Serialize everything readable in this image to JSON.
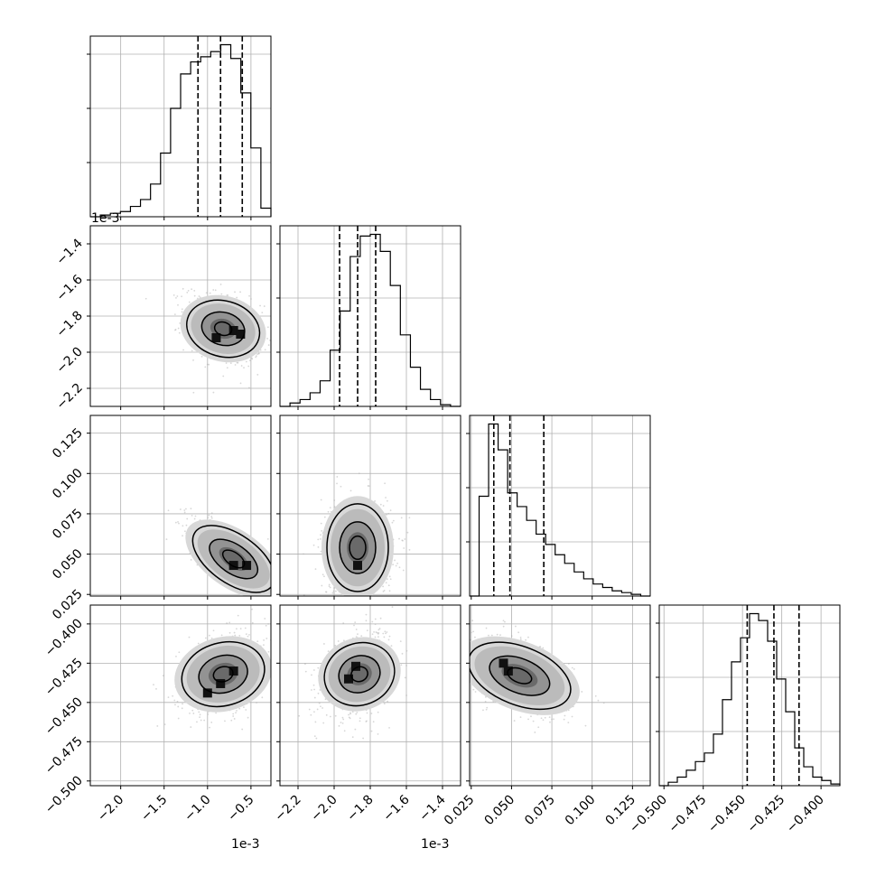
{
  "chart_data": {
    "type": "corner",
    "n_params": 4,
    "offset_labels": {
      "p0_x": "1e-3",
      "p0_y": "1e-3",
      "p1_x": "1e-3"
    },
    "params": [
      {
        "range": [
          -2.35,
          -0.27
        ],
        "ticks": [
          -2.0,
          -1.5,
          -1.0,
          -0.5
        ],
        "tick_labels": [
          "−2.0",
          "−1.5",
          "−1.0",
          "−0.5"
        ],
        "quantiles": [
          -1.11,
          -0.85,
          -0.6
        ],
        "hist": [
          0,
          0.01,
          0.02,
          0.03,
          0.06,
          0.1,
          0.19,
          0.37,
          0.63,
          0.83,
          0.9,
          0.93,
          0.96,
          1.0,
          0.92,
          0.72,
          0.4,
          0.05
        ]
      },
      {
        "range": [
          -2.3,
          -1.3
        ],
        "ticks": [
          -2.2,
          -2.0,
          -1.8,
          -1.6,
          -1.4
        ],
        "tick_labels": [
          "−2.2",
          "−2.0",
          "−1.8",
          "−1.6",
          "−1.4"
        ],
        "quantiles": [
          -1.97,
          -1.87,
          -1.77
        ],
        "hist": [
          0,
          0.02,
          0.04,
          0.08,
          0.15,
          0.33,
          0.56,
          0.88,
          1.0,
          1.01,
          0.91,
          0.71,
          0.42,
          0.23,
          0.1,
          0.04,
          0.01,
          0.0
        ]
      },
      {
        "range": [
          0.024,
          0.136
        ],
        "ticks": [
          0.025,
          0.05,
          0.075,
          0.1,
          0.125
        ],
        "tick_labels": [
          "0.025",
          "0.050",
          "0.075",
          "0.100",
          "0.125"
        ],
        "quantiles": [
          0.039,
          0.049,
          0.07
        ],
        "hist": [
          0,
          0.58,
          1.0,
          0.85,
          0.6,
          0.52,
          0.44,
          0.36,
          0.3,
          0.24,
          0.19,
          0.14,
          0.1,
          0.07,
          0.05,
          0.03,
          0.02,
          0.01,
          0.0
        ]
      },
      {
        "range": [
          -0.503,
          -0.388
        ],
        "ticks": [
          -0.5,
          -0.475,
          -0.45,
          -0.425,
          -0.4
        ],
        "tick_labels": [
          "−0.500",
          "−0.475",
          "−0.450",
          "−0.425",
          "−0.400"
        ],
        "quantiles": [
          -0.447,
          -0.43,
          -0.414
        ],
        "hist": [
          0,
          0.02,
          0.05,
          0.09,
          0.14,
          0.19,
          0.3,
          0.5,
          0.72,
          0.86,
          1.0,
          0.96,
          0.84,
          0.62,
          0.43,
          0.22,
          0.11,
          0.05,
          0.03,
          0.01
        ]
      }
    ],
    "pairs": [
      {
        "row": 1,
        "col": 0,
        "mean": [
          -0.82,
          -1.87
        ],
        "sd": [
          0.22,
          0.1
        ],
        "rho": -0.3,
        "levels": [
          0.4,
          1.0,
          1.7
        ],
        "peaks": [
          [
            -0.9,
            -1.92
          ],
          [
            -0.7,
            -1.88
          ],
          [
            -0.62,
            -1.9
          ]
        ]
      },
      {
        "row": 2,
        "col": 0,
        "mean": [
          -0.7,
          0.047
        ],
        "sd": [
          0.24,
          0.012
        ],
        "rho": -0.75,
        "levels": [
          0.45,
          1.0,
          1.7
        ],
        "peaks": [
          [
            -0.7,
            0.043
          ],
          [
            -0.55,
            0.043
          ]
        ]
      },
      {
        "row": 2,
        "col": 1,
        "mean": [
          -1.87,
          0.054
        ],
        "sd": [
          0.1,
          0.016
        ],
        "rho": 0.0,
        "levels": [
          0.45,
          1.0,
          1.7
        ],
        "peaks": [
          [
            -1.87,
            0.043
          ]
        ]
      },
      {
        "row": 3,
        "col": 0,
        "mean": [
          -0.82,
          -0.432
        ],
        "sd": [
          0.25,
          0.013
        ],
        "rho": 0.3,
        "levels": [
          0.4,
          1.0,
          1.7
        ],
        "peaks": [
          [
            -1.0,
            -0.444
          ],
          [
            -0.85,
            -0.438
          ],
          [
            -0.7,
            -0.43
          ]
        ]
      },
      {
        "row": 3,
        "col": 1,
        "mean": [
          -1.86,
          -0.432
        ],
        "sd": [
          0.1,
          0.013
        ],
        "rho": 0.35,
        "levels": [
          0.4,
          1.0,
          1.7
        ],
        "peaks": [
          [
            -1.92,
            -0.435
          ],
          [
            -1.88,
            -0.427
          ]
        ]
      },
      {
        "row": 3,
        "col": 2,
        "mean": [
          0.055,
          -0.433
        ],
        "sd": [
          0.016,
          0.013
        ],
        "rho": -0.5,
        "levels": [
          0.4,
          1.0,
          1.7
        ],
        "peaks": [
          [
            0.045,
            -0.425
          ],
          [
            0.048,
            -0.43
          ]
        ]
      }
    ]
  }
}
